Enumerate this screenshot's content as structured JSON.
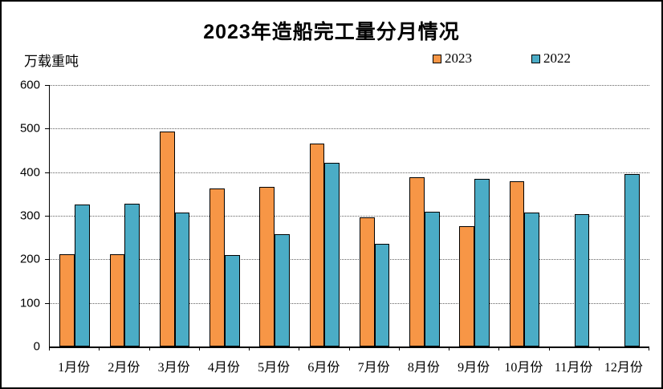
{
  "title": "2023年造船完工量分月情况",
  "unit_label": "万载重吨",
  "legend": [
    {
      "label": "2023",
      "color": "#F79646"
    },
    {
      "label": "2022",
      "color": "#4BACC6"
    }
  ],
  "colors": {
    "bar_border": "#000000",
    "gridline": "#636363",
    "background": "#FFFFFF"
  },
  "chart_data": {
    "type": "bar",
    "title": "2023年造船完工量分月情况",
    "ylabel": "万载重吨",
    "categories": [
      "1月份",
      "2月份",
      "3月份",
      "4月份",
      "5月份",
      "6月份",
      "7月份",
      "8月份",
      "9月份",
      "10月份",
      "11月份",
      "12月份"
    ],
    "series": [
      {
        "name": "2023",
        "color": "#F79646",
        "values": [
          211,
          212,
          494,
          362,
          367,
          465,
          296,
          388,
          276,
          380,
          null,
          null
        ]
      },
      {
        "name": "2022",
        "color": "#4BACC6",
        "values": [
          326,
          327,
          308,
          210,
          257,
          421,
          235,
          310,
          385,
          308,
          303,
          396
        ]
      }
    ],
    "ylim": [
      0,
      600
    ],
    "yticks": [
      0,
      100,
      200,
      300,
      400,
      500,
      600
    ],
    "grid": "horizontal-dotted",
    "legend_position": "top-right"
  }
}
